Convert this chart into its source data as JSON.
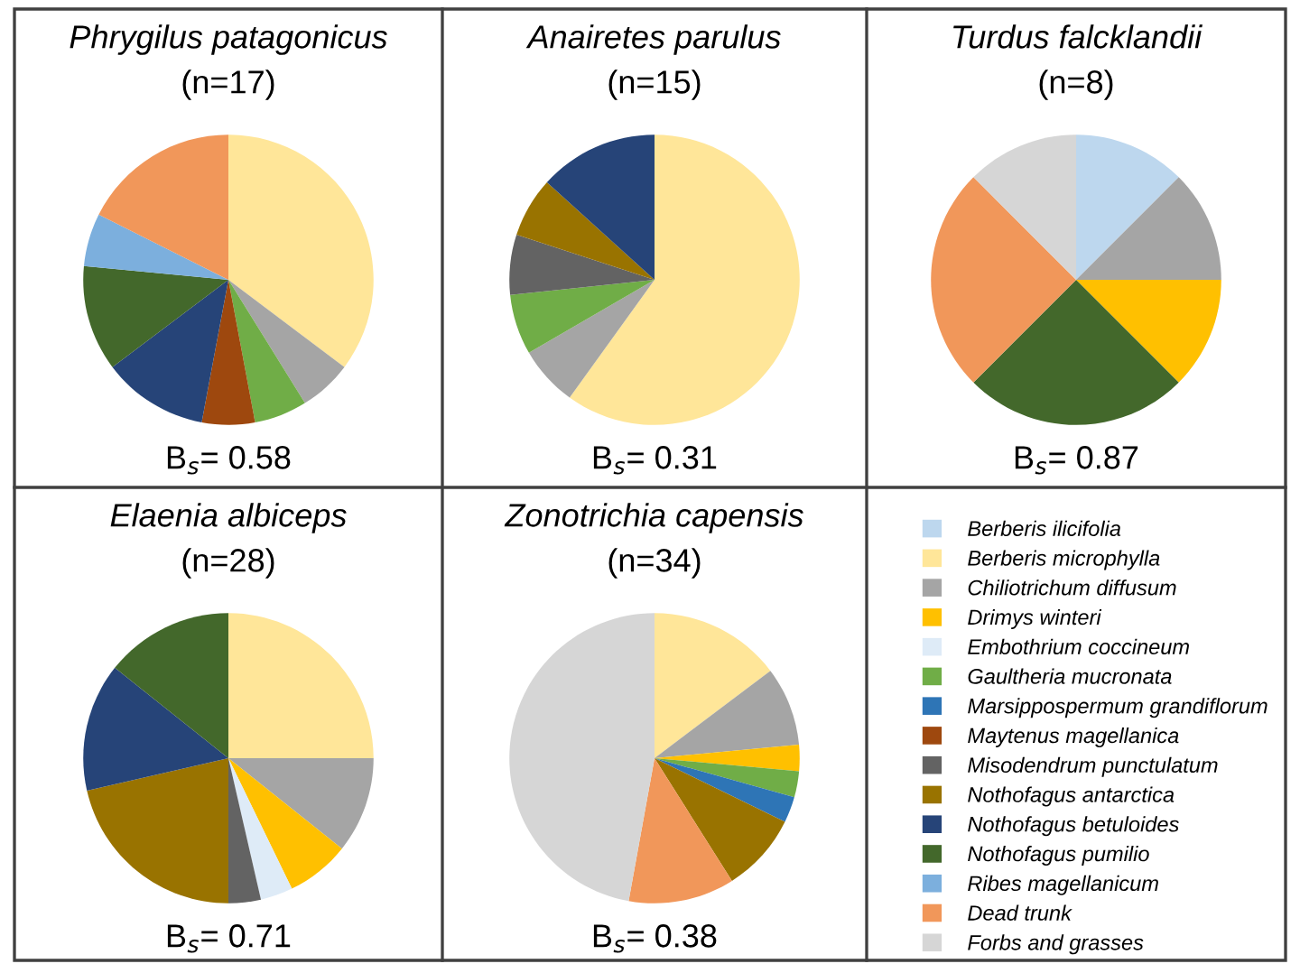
{
  "chart_data": [
    {
      "type": "pie",
      "title": "Phrygilus patagonicus",
      "subtitle": "(n=17)",
      "annotations": [
        "B$_{s}$= 0.58"
      ],
      "legend": "bottom right",
      "categories": [
        "Berberis ilicifolia",
        "Berberis microphylla",
        "Chiliotrichum diffusum",
        "Drimys winteri",
        "Embothrium coccineum",
        "Gaultheria mucronata",
        "Marsippospermum grandiflorum",
        "Maytenus magellanica",
        "Misodendrum punctulatum",
        "Nothofagus antarctica",
        "Nothofagus betuloides",
        "Nothofagus pumilio",
        "Ribes magellanicum",
        "Dead trunk",
        "Forbs and grasses"
      ],
      "values": [
        0,
        35.3,
        5.9,
        0,
        0,
        5.9,
        0,
        5.9,
        0,
        0,
        11.8,
        11.8,
        5.9,
        17.6,
        0
      ],
      "colors": [
        "#bdd7ee",
        "#ffe699",
        "#a5a5a5",
        "#ffc000",
        "#deebf7",
        "#70ad47",
        "#2e75b6",
        "#9e480e",
        "#636363",
        "#997300",
        "#264478",
        "#43682b",
        "#7cafdd",
        "#f1975a",
        "#d6d6d6"
      ]
    },
    {
      "type": "pie",
      "title": "Anairetes parulus",
      "subtitle": "(n=15)",
      "annotations": [
        "B$_{s}$= 0.31"
      ],
      "categories": [
        null,
        null,
        null,
        null,
        null,
        null
      ],
      "values": [
        60.0,
        6.7,
        6.7,
        6.7,
        6.7,
        13.3
      ],
      "colors": [
        "#ffe699",
        "#a5a5a5",
        "#70ad47",
        "#636363",
        "#997300",
        "#264478"
      ]
    },
    {
      "type": "pie",
      "title": "Turdus falcklandii",
      "subtitle": "(n=8)",
      "annotations": [
        "B$_{s}$= 0.87"
      ],
      "categories": [
        null,
        null,
        null,
        null,
        null,
        null
      ],
      "values": [
        12.5,
        12.5,
        12.5,
        25.0,
        25.0,
        12.5
      ],
      "colors": [
        "#bdd7ee",
        "#a5a5a5",
        "#ffc000",
        "#43682b",
        "#f1975a",
        "#d6d6d6"
      ]
    },
    {
      "type": "pie",
      "title": "Elaenia albiceps",
      "subtitle": "(n=28)",
      "annotations": [
        "B$_{s}$= 0.71"
      ],
      "categories": [
        null,
        null,
        null,
        null,
        null,
        null,
        null,
        null
      ],
      "values": [
        25.0,
        10.7,
        7.1,
        3.6,
        3.6,
        21.4,
        14.3,
        14.3
      ],
      "colors": [
        "#ffe699",
        "#a5a5a5",
        "#ffc000",
        "#deebf7",
        "#636363",
        "#997300",
        "#264478",
        "#43682b"
      ]
    },
    {
      "type": "pie",
      "title": "Zonotrichia capensis",
      "subtitle": "(n=34)",
      "annotations": [
        "B$_{s}$= 0.38"
      ],
      "categories": [
        null,
        null,
        null,
        null,
        null,
        null,
        null,
        null
      ],
      "values": [
        14.7,
        8.8,
        2.9,
        2.9,
        2.9,
        8.8,
        11.8,
        47.1
      ],
      "colors": [
        "#ffe699",
        "#a5a5a5",
        "#ffc000",
        "#70ad47",
        "#2e75b6",
        "#997300",
        "#f1975a",
        "#d6d6d6"
      ]
    }
  ]
}
